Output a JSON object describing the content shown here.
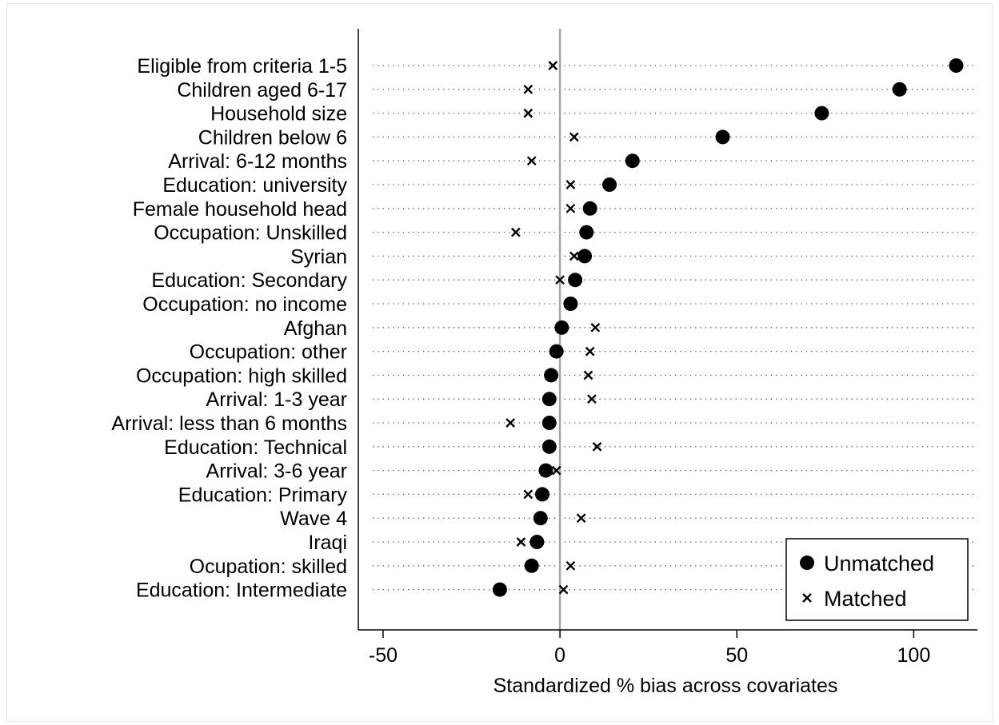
{
  "chart_data": {
    "type": "scatter",
    "title": "",
    "xlabel": "Standardized % bias across covariates",
    "ylabel": "",
    "xlim": [
      -57,
      118
    ],
    "xticks": [
      -50,
      0,
      50,
      100
    ],
    "grid": "horizontal dotted lines per covariate",
    "reference_line_x": 0,
    "legend_position": "bottom-right",
    "categories": [
      "Eligible from criteria 1-5",
      "Children aged 6-17",
      "Household size",
      "Children below 6",
      "Arrival: 6-12 months",
      "Education: university",
      "Female household head",
      "Occupation: Unskilled",
      "Syrian",
      "Education: Secondary",
      "Occupation: no income",
      "Afghan",
      "Occupation: other",
      "Occupation: high skilled",
      "Arrival: 1-3 year",
      "Arrival: less than 6 months",
      "Education: Technical",
      "Arrival: 3-6 year",
      "Education: Primary",
      "Wave 4",
      "Iraqi",
      "Ocupation: skilled",
      "Education: Intermediate"
    ],
    "series": [
      {
        "name": "Unmatched",
        "marker": "circle",
        "color": "#000000",
        "values": [
          112,
          96,
          74,
          46,
          20.5,
          14,
          8.5,
          7.5,
          7,
          4.3,
          3,
          0.5,
          -1,
          -2.5,
          -3,
          -3,
          -3,
          -4,
          -5,
          -5.5,
          -6.5,
          -8,
          -17
        ]
      },
      {
        "name": "Matched",
        "marker": "x",
        "color": "#000000",
        "values": [
          -2,
          -9,
          -9,
          4,
          -8,
          3,
          3,
          -12.5,
          4,
          0,
          3.5,
          10,
          8.5,
          8,
          9,
          -14,
          10.5,
          -1,
          -9,
          6,
          -11,
          3,
          1
        ]
      }
    ]
  }
}
